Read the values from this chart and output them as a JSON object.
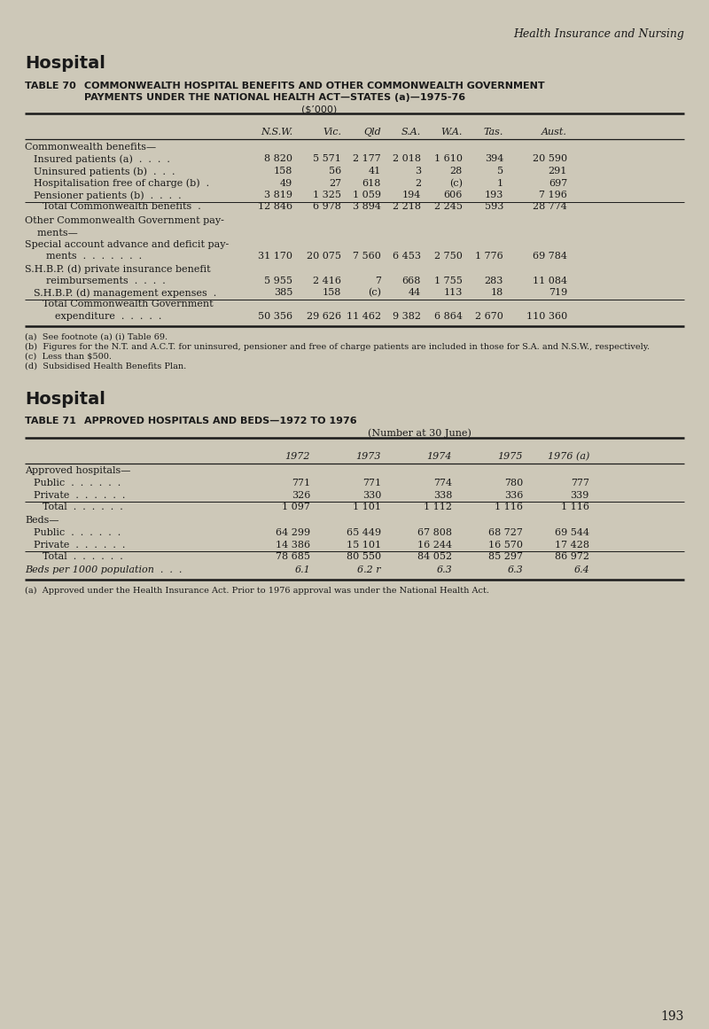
{
  "bg_color": "#cdc8b8",
  "text_color": "#1a1a1a",
  "page_header": "Health Insurance and Nursing",
  "page_number": "193",
  "table70": {
    "section_title": "Hospital",
    "table_label": "TABLE 70",
    "table_title_line1": "COMMONWEALTH HOSPITAL BENEFITS AND OTHER COMMONWEALTH GOVERNMENT",
    "table_title_line2": "PAYMENTS UNDER THE NATIONAL HEALTH ACT—STATES (a)—1975-76",
    "table_title_line3": "($’000)",
    "col_headers": [
      "N.S.W.",
      "Vic.",
      "Qld",
      "S.A.",
      "W.A.",
      "Tas.",
      "Aust."
    ],
    "col_positions": [
      330,
      385,
      430,
      475,
      522,
      568,
      640
    ],
    "rows": [
      {
        "label": "Commonwealth benefits—",
        "indent": 0,
        "values": [],
        "style": "section"
      },
      {
        "label": "Insured patients (a)  .  .  .  .",
        "indent": 1,
        "values": [
          "8 820",
          "5 571",
          "2 177",
          "2 018",
          "1 610",
          "394",
          "20 590"
        ],
        "style": "data"
      },
      {
        "label": "Uninsured patients (b)  .  .  .",
        "indent": 1,
        "values": [
          "158",
          "56",
          "41",
          "3",
          "28",
          "5",
          "291"
        ],
        "style": "data"
      },
      {
        "label": "Hospitalisation free of charge (b)  .",
        "indent": 1,
        "values": [
          "49",
          "27",
          "618",
          "2",
          "(c)",
          "1",
          "697"
        ],
        "style": "data"
      },
      {
        "label": "Pensioner patients (b)  .  .  .  .",
        "indent": 1,
        "values": [
          "3 819",
          "1 325",
          "1 059",
          "194",
          "606",
          "193",
          "7 196"
        ],
        "style": "data"
      },
      {
        "label": "Total Commonwealth benefits  .",
        "indent": 2,
        "values": [
          "12 846",
          "6 978",
          "3 894",
          "2 218",
          "2 245",
          "593",
          "28 774"
        ],
        "style": "total",
        "line_above": true
      },
      {
        "label": "Other Commonwealth Government pay-",
        "indent": 0,
        "values": [],
        "style": "section"
      },
      {
        "label": "    ments—",
        "indent": 0,
        "values": [],
        "style": "section"
      },
      {
        "label": "Special account advance and deficit pay-",
        "indent": 0,
        "values": [],
        "style": "section"
      },
      {
        "label": "    ments  .  .  .  .  .  .  .",
        "indent": 1,
        "values": [
          "31 170",
          "20 075",
          "7 560",
          "6 453",
          "2 750",
          "1 776",
          "69 784"
        ],
        "style": "data"
      },
      {
        "label": "S.H.B.P. (d) private insurance benefit",
        "indent": 0,
        "values": [],
        "style": "section"
      },
      {
        "label": "    reimbursements  .  .  .  .",
        "indent": 1,
        "values": [
          "5 955",
          "2 416",
          "7",
          "668",
          "1 755",
          "283",
          "11 084"
        ],
        "style": "data"
      },
      {
        "label": "S.H.B.P. (d) management expenses  .",
        "indent": 1,
        "values": [
          "385",
          "158",
          "(c)",
          "44",
          "113",
          "18",
          "719"
        ],
        "style": "data"
      },
      {
        "label": "Total Commonwealth Government",
        "indent": 2,
        "values": [],
        "style": "total_label",
        "line_above": true
      },
      {
        "label": "    expenditure  .  .  .  .  .",
        "indent": 2,
        "values": [
          "50 356",
          "29 626",
          "11 462",
          "9 382",
          "6 864",
          "2 670",
          "110 360"
        ],
        "style": "total"
      }
    ],
    "footnotes": [
      "(a)  See footnote (a) (i) Table 69.",
      "(b)  Figures for the N.T. and A.C.T. for uninsured, pensioner and free of charge patients are included in those for S.A. and N.S.W., respectively.",
      "(c)  Less than $500.",
      "(d)  Subsidised Health Benefits Plan."
    ]
  },
  "table71": {
    "section_title": "Hospital",
    "table_label": "TABLE 71",
    "table_title": "APPROVED HOSPITALS AND BEDS—1972 TO 1976",
    "table_subtitle": "(Number at 30 June)",
    "col_headers": [
      "1972",
      "1973",
      "1974",
      "1975",
      "1976 (a)"
    ],
    "col_positions": [
      350,
      430,
      510,
      590,
      665
    ],
    "rows": [
      {
        "label": "Approved hospitals—",
        "indent": 0,
        "values": [],
        "style": "section"
      },
      {
        "label": "Public  .  .  .  .  .  .",
        "indent": 1,
        "values": [
          "771",
          "771",
          "774",
          "780",
          "777"
        ],
        "style": "data"
      },
      {
        "label": "Private  .  .  .  .  .  .",
        "indent": 1,
        "values": [
          "326",
          "330",
          "338",
          "336",
          "339"
        ],
        "style": "data"
      },
      {
        "label": "Total  .  .  .  .  .  .",
        "indent": 2,
        "values": [
          "1 097",
          "1 101",
          "1 112",
          "1 116",
          "1 116"
        ],
        "style": "total",
        "line_above": true
      },
      {
        "label": "Beds—",
        "indent": 0,
        "values": [],
        "style": "section"
      },
      {
        "label": "Public  .  .  .  .  .  .",
        "indent": 1,
        "values": [
          "64 299",
          "65 449",
          "67 808",
          "68 727",
          "69 544"
        ],
        "style": "data"
      },
      {
        "label": "Private  .  .  .  .  .  .",
        "indent": 1,
        "values": [
          "14 386",
          "15 101",
          "16 244",
          "16 570",
          "17 428"
        ],
        "style": "data"
      },
      {
        "label": "Total  .  .  .  .  .  .",
        "indent": 2,
        "values": [
          "78 685",
          "80 550",
          "84 052",
          "85 297",
          "86 972"
        ],
        "style": "total",
        "line_above": true
      },
      {
        "label": "Beds per 1000 population  .  .  .",
        "indent": 0,
        "values": [
          "6.1",
          "6.2 r",
          "6.3",
          "6.3",
          "6.4"
        ],
        "style": "italic"
      }
    ],
    "footnotes": [
      "(a)  Approved under the Health Insurance Act. Prior to 1976 approval was under the National Health Act."
    ]
  }
}
